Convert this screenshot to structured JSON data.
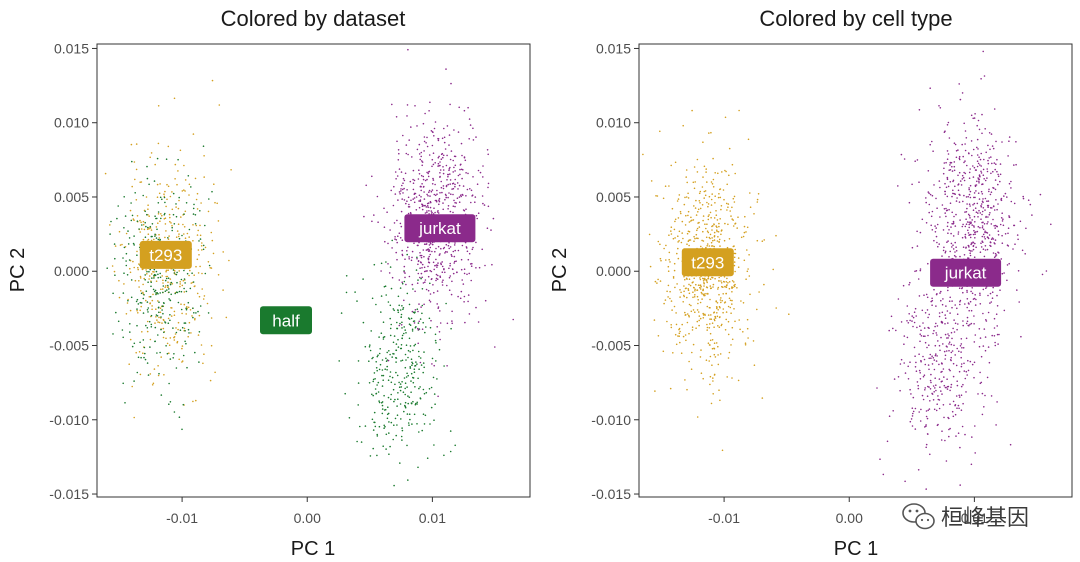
{
  "chart_data": [
    {
      "type": "scatter",
      "title": "Colored by dataset",
      "xlabel": "PC 1",
      "ylabel": "PC 2",
      "xlim": [
        -0.0168,
        0.0178
      ],
      "ylim": [
        -0.0152,
        0.0153
      ],
      "x_ticks": [
        -0.01,
        0.0,
        0.01
      ],
      "x_tick_labels": [
        "-0.01",
        "0.00",
        "0.01"
      ],
      "y_ticks": [
        -0.015,
        -0.01,
        -0.005,
        0.0,
        0.005,
        0.01,
        0.015
      ],
      "y_tick_labels": [
        "-0.015",
        "-0.010",
        "-0.005",
        "0.000",
        "0.005",
        "0.010",
        "0.015"
      ],
      "grid": false,
      "legend": "none",
      "series": [
        {
          "color": "#D4A020",
          "clusters": [
            {
              "cx": -0.0113,
              "cy": 0.0004,
              "sx": 0.0018,
              "sy": 0.0036,
              "n": 420,
              "seed": 11
            }
          ]
        },
        {
          "color": "#1A7A2E",
          "clusters": [
            {
              "cx": -0.0118,
              "cy": -0.0005,
              "sx": 0.0017,
              "sy": 0.0034,
              "n": 330,
              "seed": 12
            },
            {
              "cx": 0.0071,
              "cy": -0.0065,
              "sx": 0.0017,
              "sy": 0.0032,
              "n": 360,
              "seed": 13
            }
          ]
        },
        {
          "color": "#8B2A8B",
          "clusters": [
            {
              "cx": 0.0103,
              "cy": 0.0033,
              "sx": 0.0019,
              "sy": 0.0035,
              "n": 720,
              "seed": 14
            }
          ]
        }
      ],
      "labels": [
        {
          "text": "t293",
          "x": -0.0113,
          "y": 0.0011,
          "color": "#D4A020"
        },
        {
          "text": "half",
          "x": -0.0017,
          "y": -0.0033,
          "color": "#1A7A2E"
        },
        {
          "text": "jurkat",
          "x": 0.0106,
          "y": 0.0029,
          "color": "#8B2A8B"
        }
      ]
    },
    {
      "type": "scatter",
      "title": "Colored by cell type",
      "xlabel": "PC 1",
      "ylabel": "PC 2",
      "xlim": [
        -0.0168,
        0.0178
      ],
      "ylim": [
        -0.0152,
        0.0153
      ],
      "x_ticks": [
        -0.01,
        0.0,
        0.01
      ],
      "x_tick_labels": [
        "-0.01",
        "0.00",
        "0.01"
      ],
      "y_ticks": [
        -0.015,
        -0.01,
        -0.005,
        0.0,
        0.005,
        0.01,
        0.015
      ],
      "y_tick_labels": [
        "-0.015",
        "-0.010",
        "-0.005",
        "0.000",
        "0.005",
        "0.010",
        "0.015"
      ],
      "grid": false,
      "legend": "none",
      "series": [
        {
          "color": "#D4A020",
          "clusters": [
            {
              "cx": -0.0114,
              "cy": 0.0003,
              "sx": 0.0018,
              "sy": 0.0036,
              "n": 720,
              "seed": 21
            }
          ]
        },
        {
          "color": "#8B2A8B",
          "clusters": [
            {
              "cx": 0.0098,
              "cy": 0.0033,
              "sx": 0.0019,
              "sy": 0.0035,
              "n": 680,
              "seed": 22
            },
            {
              "cx": 0.0071,
              "cy": -0.0065,
              "sx": 0.0017,
              "sy": 0.0032,
              "n": 360,
              "seed": 23
            }
          ]
        }
      ],
      "labels": [
        {
          "text": "t293",
          "x": -0.0113,
          "y": 0.0006,
          "color": "#D4A020"
        },
        {
          "text": "jurkat",
          "x": 0.0093,
          "y": -0.0001,
          "color": "#8B2A8B"
        }
      ]
    }
  ],
  "watermark": {
    "icon": "wechat-icon",
    "text": "桓峰基因"
  }
}
